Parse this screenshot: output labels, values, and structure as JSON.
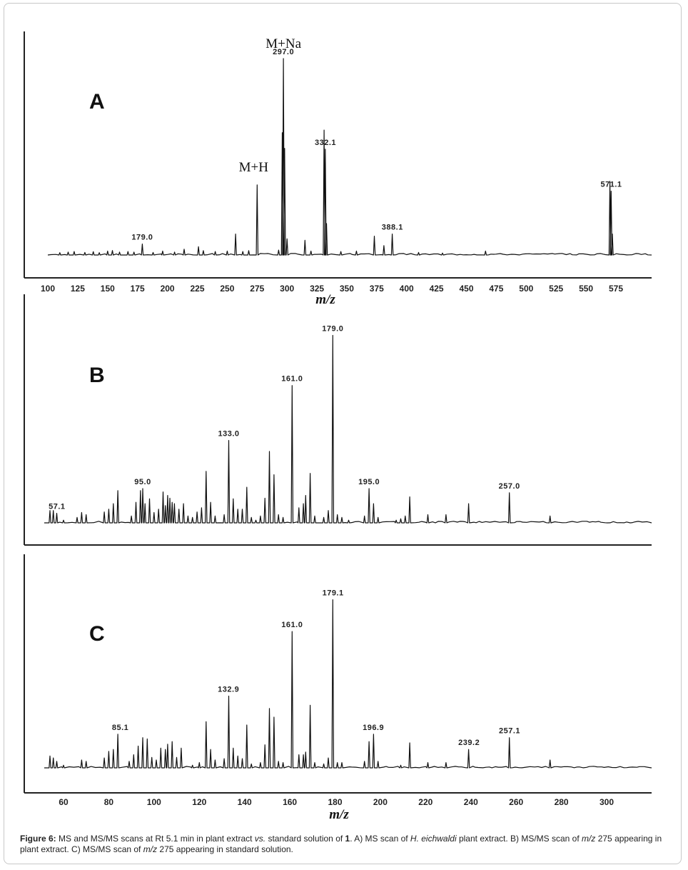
{
  "figure": {
    "caption_parts": [
      {
        "t": "Figure 6:",
        "b": true
      },
      {
        "t": " MS and MS/MS scans at Rt 5.1 min in plant extract "
      },
      {
        "t": "vs.",
        "i": true
      },
      {
        "t": " standard solution of "
      },
      {
        "t": "1",
        "b": true
      },
      {
        "t": ". A) MS scan of "
      },
      {
        "t": "H. eichwaldi",
        "i": true
      },
      {
        "t": " plant extract. B) MS/MS scan of "
      },
      {
        "t": "m/z",
        "i": true
      },
      {
        "t": " 275 appearing in plant extract. C) MS/MS scan of "
      },
      {
        "t": "m/z",
        "i": true
      },
      {
        "t": " 275 appearing in standard solution."
      }
    ]
  },
  "chart_data": [
    {
      "type": "line",
      "panel_label": "A",
      "xlabel": "m/z",
      "xticks": [
        100,
        125,
        150,
        175,
        200,
        225,
        250,
        275,
        300,
        325,
        350,
        375,
        400,
        425,
        450,
        475,
        500,
        525,
        550,
        575
      ],
      "xlim": [
        80,
        607
      ],
      "ylim": [
        0,
        100
      ],
      "peaks": [
        [
          110,
          1.2
        ],
        [
          117,
          1.5
        ],
        [
          122,
          1.8
        ],
        [
          131,
          1.3
        ],
        [
          138,
          1.7
        ],
        [
          143,
          1.2
        ],
        [
          150,
          2.0
        ],
        [
          154,
          2.3
        ],
        [
          160,
          1.5
        ],
        [
          167,
          1.8
        ],
        [
          172,
          1.5
        ],
        [
          179,
          5.6
        ],
        [
          188,
          1.3
        ],
        [
          196,
          2.0
        ],
        [
          206,
          1.5
        ],
        [
          214,
          3.0
        ],
        [
          226,
          4.2
        ],
        [
          230,
          2.2
        ],
        [
          240,
          1.8
        ],
        [
          250,
          2.0
        ],
        [
          257,
          10.7
        ],
        [
          263,
          1.8
        ],
        [
          268,
          2.2
        ],
        [
          275,
          35.7
        ],
        [
          293,
          2.5
        ],
        [
          296,
          62.3
        ],
        [
          297,
          100
        ],
        [
          298,
          54.3
        ],
        [
          300,
          8.2
        ],
        [
          315,
          7.5
        ],
        [
          320,
          2.0
        ],
        [
          331,
          63.6
        ],
        [
          332,
          53.9
        ],
        [
          333,
          16.0
        ],
        [
          345,
          1.8
        ],
        [
          358,
          2.0
        ],
        [
          373,
          9.6
        ],
        [
          381,
          4.8
        ],
        [
          388,
          10.7
        ],
        [
          410,
          1.3
        ],
        [
          430,
          1.0
        ],
        [
          466,
          2.0
        ],
        [
          570,
          37.5
        ],
        [
          571,
          32.5
        ],
        [
          572,
          10.7
        ]
      ],
      "peak_labels": [
        {
          "x": 179.0,
          "text": "179.0"
        },
        {
          "x": 297.0,
          "text": "297.0"
        },
        {
          "x": 332.1,
          "text": "332.1"
        },
        {
          "x": 388.1,
          "text": "388.1"
        },
        {
          "x": 571.1,
          "text": "571.1"
        }
      ],
      "annotations": [
        {
          "text": "M+Na",
          "x": 297
        },
        {
          "text": "M+H",
          "x": 275
        }
      ]
    },
    {
      "type": "line",
      "panel_label": "B",
      "xlabel": "",
      "xlim": [
        50,
        318
      ],
      "ylim": [
        0,
        100
      ],
      "peaks": [
        [
          54,
          6.3
        ],
        [
          55.5,
          6.3
        ],
        [
          57,
          4.9
        ],
        [
          60,
          1.4
        ],
        [
          66,
          2.8
        ],
        [
          68,
          5.3
        ],
        [
          70,
          4.2
        ],
        [
          78,
          5.6
        ],
        [
          80,
          7.0
        ],
        [
          82,
          9.8
        ],
        [
          84,
          16.5
        ],
        [
          90,
          3.5
        ],
        [
          92,
          10.5
        ],
        [
          94,
          16.5
        ],
        [
          95,
          17.5
        ],
        [
          96,
          9.8
        ],
        [
          98,
          12.3
        ],
        [
          100,
          5.3
        ],
        [
          102,
          7.0
        ],
        [
          104,
          15.8
        ],
        [
          105,
          8.8
        ],
        [
          106,
          14.0
        ],
        [
          107,
          12.6
        ],
        [
          108,
          10.5
        ],
        [
          109,
          9.8
        ],
        [
          111,
          7.0
        ],
        [
          113,
          9.8
        ],
        [
          115,
          3.5
        ],
        [
          117,
          2.8
        ],
        [
          119,
          5.6
        ],
        [
          121,
          7.7
        ],
        [
          123,
          26.3
        ],
        [
          125,
          10.5
        ],
        [
          127,
          3.5
        ],
        [
          131,
          4.2
        ],
        [
          133,
          42.1
        ],
        [
          135,
          12.3
        ],
        [
          137,
          7.0
        ],
        [
          139,
          7.0
        ],
        [
          141,
          18.2
        ],
        [
          143,
          2.8
        ],
        [
          145,
          1.4
        ],
        [
          147,
          3.5
        ],
        [
          149,
          12.6
        ],
        [
          151,
          36.5
        ],
        [
          153,
          24.6
        ],
        [
          155,
          4.2
        ],
        [
          157,
          2.8
        ],
        [
          161,
          70.2
        ],
        [
          164,
          7.7
        ],
        [
          166,
          9.8
        ],
        [
          167,
          14.0
        ],
        [
          169,
          25.3
        ],
        [
          171,
          3.5
        ],
        [
          175,
          2.8
        ],
        [
          177,
          6.3
        ],
        [
          179,
          95.8
        ],
        [
          181,
          4.2
        ],
        [
          183,
          2.8
        ],
        [
          186,
          1.4
        ],
        [
          193,
          3.5
        ],
        [
          195,
          17.5
        ],
        [
          197,
          9.8
        ],
        [
          199,
          2.8
        ],
        [
          207,
          1.4
        ],
        [
          209,
          2.1
        ],
        [
          211,
          3.5
        ],
        [
          213,
          13.3
        ],
        [
          221,
          4.2
        ],
        [
          229,
          4.2
        ],
        [
          239,
          9.8
        ],
        [
          257,
          15.4
        ],
        [
          275,
          3.5
        ]
      ],
      "peak_labels": [
        {
          "x": 57.1,
          "text": "57.1"
        },
        {
          "x": 95.0,
          "text": "95.0"
        },
        {
          "x": 133.0,
          "text": "133.0"
        },
        {
          "x": 161.0,
          "text": "161.0"
        },
        {
          "x": 179.0,
          "text": "179.0"
        },
        {
          "x": 195.0,
          "text": "195.0"
        },
        {
          "x": 257.0,
          "text": "257.0"
        }
      ],
      "annotations": []
    },
    {
      "type": "line",
      "panel_label": "C",
      "xlabel": "m/z",
      "xticks": [
        60,
        80,
        100,
        120,
        140,
        160,
        180,
        200,
        220,
        240,
        260,
        280,
        300
      ],
      "xlim": [
        50,
        318
      ],
      "ylim": [
        0,
        100
      ],
      "peaks": [
        [
          54,
          6.3
        ],
        [
          55.5,
          5.3
        ],
        [
          57,
          3.5
        ],
        [
          60,
          1.4
        ],
        [
          68,
          4.2
        ],
        [
          70,
          3.5
        ],
        [
          78,
          5.3
        ],
        [
          80,
          8.8
        ],
        [
          82,
          9.8
        ],
        [
          84,
          17.9
        ],
        [
          89,
          3.5
        ],
        [
          91,
          7.0
        ],
        [
          93,
          11.6
        ],
        [
          95,
          16.1
        ],
        [
          97,
          15.4
        ],
        [
          99,
          5.6
        ],
        [
          101,
          4.2
        ],
        [
          103,
          10.5
        ],
        [
          105,
          9.8
        ],
        [
          106,
          12.6
        ],
        [
          108,
          14.0
        ],
        [
          110,
          5.6
        ],
        [
          112,
          10.5
        ],
        [
          117,
          1.4
        ],
        [
          120,
          2.8
        ],
        [
          123,
          24.6
        ],
        [
          125,
          9.8
        ],
        [
          127,
          4.2
        ],
        [
          131,
          4.9
        ],
        [
          133,
          38.2
        ],
        [
          135,
          10.5
        ],
        [
          137,
          6.3
        ],
        [
          139,
          4.9
        ],
        [
          141,
          22.8
        ],
        [
          143,
          2.1
        ],
        [
          147,
          2.8
        ],
        [
          149,
          12.3
        ],
        [
          151,
          31.6
        ],
        [
          153,
          27.0
        ],
        [
          155,
          3.5
        ],
        [
          157,
          2.8
        ],
        [
          161,
          72.6
        ],
        [
          164,
          7.0
        ],
        [
          166,
          7.0
        ],
        [
          167,
          8.4
        ],
        [
          169,
          33.3
        ],
        [
          171,
          2.8
        ],
        [
          175,
          2.1
        ],
        [
          177,
          5.3
        ],
        [
          179,
          89.5
        ],
        [
          181,
          2.8
        ],
        [
          183,
          2.8
        ],
        [
          193,
          3.5
        ],
        [
          195,
          14.0
        ],
        [
          197,
          17.9
        ],
        [
          199,
          3.5
        ],
        [
          209,
          1.4
        ],
        [
          213,
          13.3
        ],
        [
          221,
          2.8
        ],
        [
          229,
          2.8
        ],
        [
          239,
          9.8
        ],
        [
          257,
          16.1
        ],
        [
          275,
          4.2
        ]
      ],
      "peak_labels": [
        {
          "x": 85.1,
          "text": "85.1"
        },
        {
          "x": 132.9,
          "text": "132.9"
        },
        {
          "x": 161.0,
          "text": "161.0"
        },
        {
          "x": 179.1,
          "text": "179.1"
        },
        {
          "x": 196.9,
          "text": "196.9"
        },
        {
          "x": 239.2,
          "text": "239.2"
        },
        {
          "x": 257.1,
          "text": "257.1"
        }
      ],
      "annotations": []
    }
  ]
}
